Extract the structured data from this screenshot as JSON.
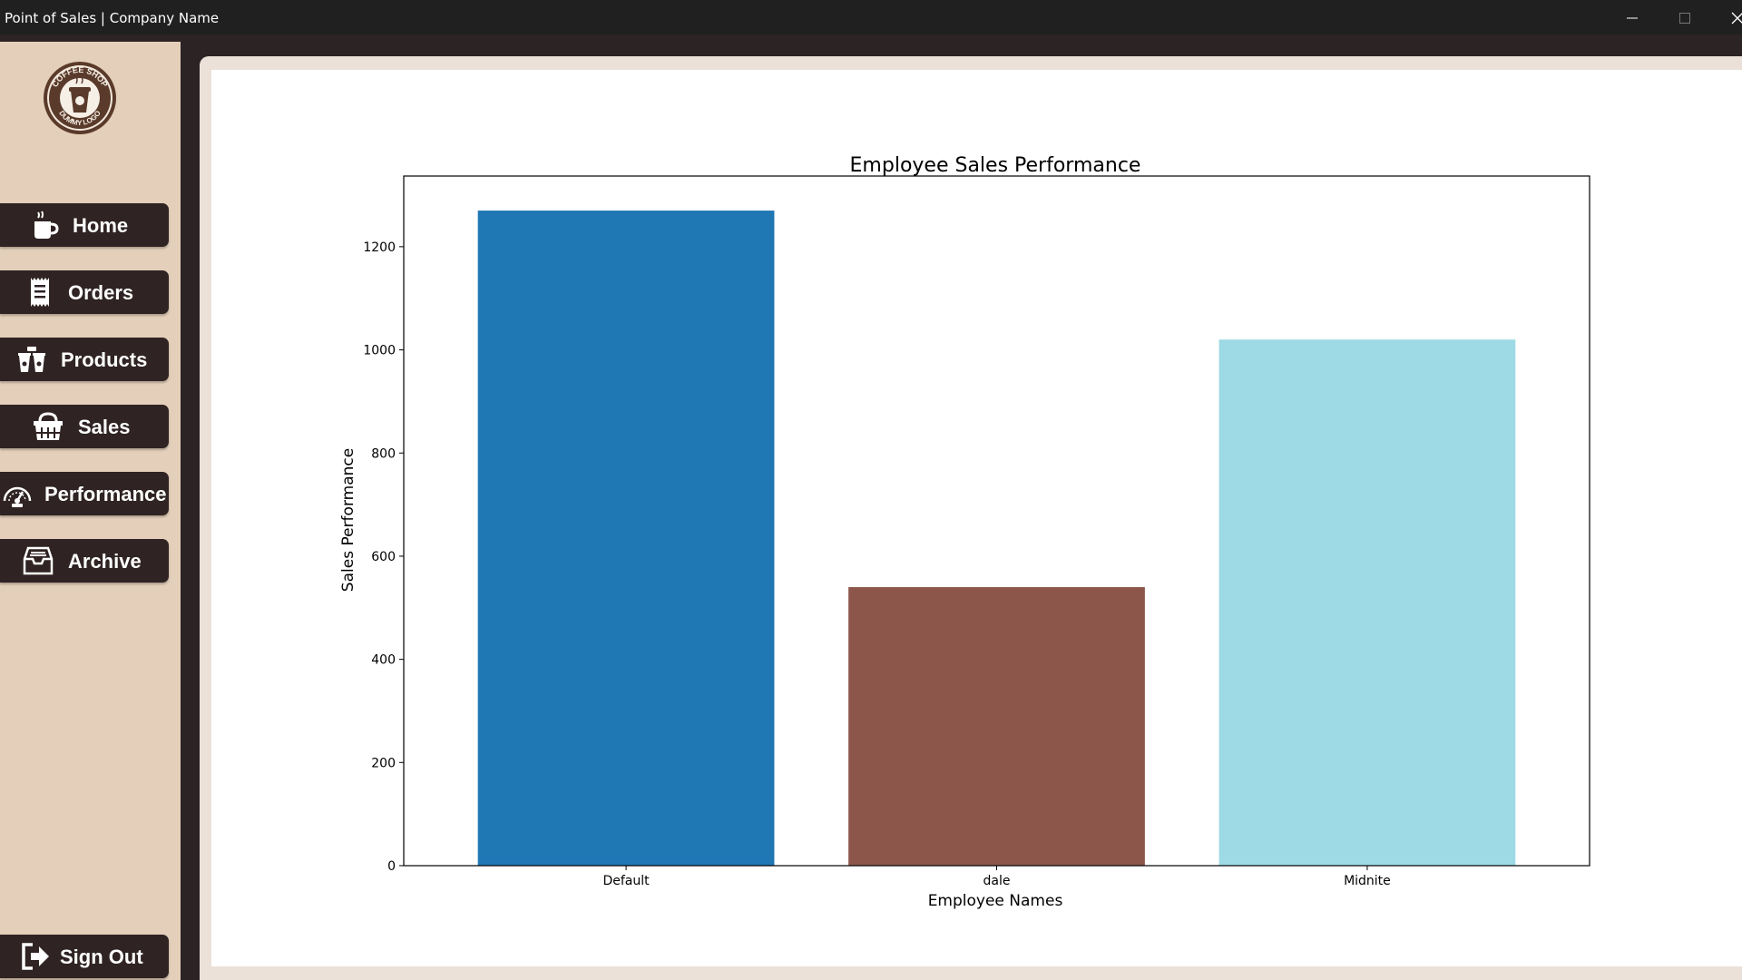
{
  "window": {
    "title": "Point of Sales | Company Name"
  },
  "logo": {
    "text_top": "COFFEE SHOP",
    "text_bottom": "DUMMY LOGO"
  },
  "sidebar": {
    "items": [
      {
        "label": "Home",
        "icon": "coffee-cup-icon"
      },
      {
        "label": "Orders",
        "icon": "receipt-icon"
      },
      {
        "label": "Products",
        "icon": "coffee-cups-icon"
      },
      {
        "label": "Sales",
        "icon": "basket-icon"
      },
      {
        "label": "Performance",
        "icon": "gauge-icon"
      },
      {
        "label": "Archive",
        "icon": "archive-box-icon"
      }
    ],
    "signout": {
      "label": "Sign Out",
      "icon": "sign-out-icon"
    }
  },
  "colors": {
    "sidebar_bg": "#e4cfba",
    "button_bg": "#2f2323",
    "accent": "#7a4a2e"
  },
  "chart_data": {
    "type": "bar",
    "title": "Employee Sales Performance",
    "xlabel": "Employee Names",
    "ylabel": "Sales Performance",
    "categories": [
      "Default",
      "dale",
      "Midnite"
    ],
    "values": [
      1270,
      540,
      1020
    ],
    "colors": [
      "#1f77b4",
      "#8c564b",
      "#9edae5"
    ],
    "ylim": [
      0,
      1337
    ],
    "yticks": [
      0,
      200,
      400,
      600,
      800,
      1000,
      1200
    ],
    "grid": false
  }
}
